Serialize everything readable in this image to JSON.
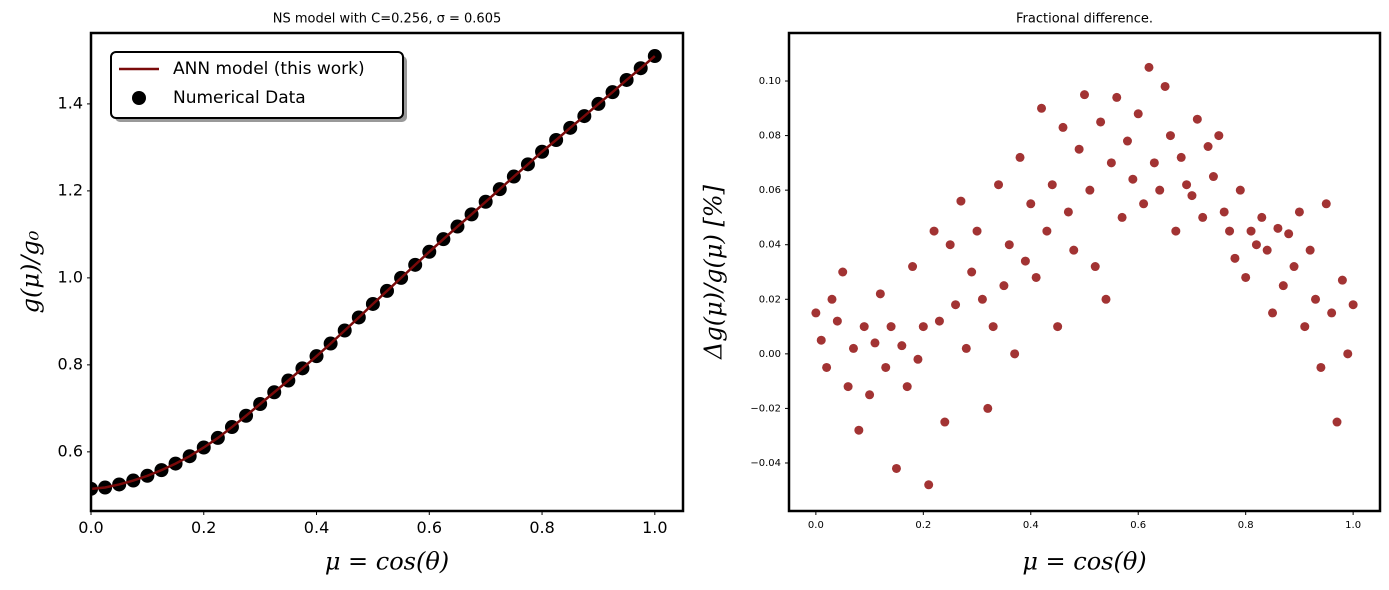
{
  "chart_data": [
    {
      "type": "line",
      "title": "NS model with C=0.256, σ = 0.605",
      "xlabel": "μ = cos(θ)",
      "ylabel": "g(μ)/g₀",
      "x": [
        0,
        0.025,
        0.05,
        0.075,
        0.1,
        0.125,
        0.15,
        0.175,
        0.2,
        0.225,
        0.25,
        0.275,
        0.3,
        0.325,
        0.35,
        0.375,
        0.4,
        0.425,
        0.45,
        0.475,
        0.5,
        0.525,
        0.55,
        0.575,
        0.6,
        0.625,
        0.65,
        0.675,
        0.7,
        0.725,
        0.75,
        0.775,
        0.8,
        0.825,
        0.85,
        0.875,
        0.9,
        0.925,
        0.95,
        0.975,
        1.0
      ],
      "series": [
        {
          "name": "ANN model (this work)",
          "type": "line",
          "color": "#7a0a0a",
          "values": [
            0.515,
            0.518,
            0.525,
            0.534,
            0.545,
            0.558,
            0.573,
            0.59,
            0.61,
            0.632,
            0.657,
            0.683,
            0.71,
            0.737,
            0.764,
            0.792,
            0.82,
            0.849,
            0.879,
            0.909,
            0.94,
            0.97,
            1.0,
            1.03,
            1.06,
            1.089,
            1.118,
            1.146,
            1.175,
            1.204,
            1.233,
            1.261,
            1.29,
            1.317,
            1.345,
            1.372,
            1.4,
            1.427,
            1.455,
            1.482,
            1.51
          ]
        },
        {
          "name": "Numerical Data",
          "type": "scatter",
          "color": "#000000",
          "values": [
            0.515,
            0.518,
            0.525,
            0.534,
            0.545,
            0.558,
            0.573,
            0.59,
            0.61,
            0.632,
            0.657,
            0.683,
            0.71,
            0.737,
            0.764,
            0.792,
            0.82,
            0.849,
            0.879,
            0.909,
            0.94,
            0.97,
            1.0,
            1.03,
            1.06,
            1.089,
            1.118,
            1.146,
            1.175,
            1.204,
            1.233,
            1.261,
            1.29,
            1.317,
            1.345,
            1.372,
            1.4,
            1.427,
            1.455,
            1.482,
            1.51
          ]
        }
      ],
      "xlim": [
        0,
        1.05
      ],
      "ylim": [
        0.464,
        1.563
      ],
      "xticks": [
        {
          "value": 0,
          "label": "0.0"
        },
        0.2,
        0.4,
        0.6,
        0.8,
        {
          "value": 1,
          "label": "1.0"
        }
      ],
      "yticks": [
        0.6,
        0.8,
        {
          "value": 1,
          "label": "1.0"
        },
        1.2,
        1.4
      ],
      "legend": "upper left"
    },
    {
      "type": "scatter",
      "title": "Fractional difference.",
      "xlabel": "μ = cos(θ)",
      "ylabel": "Δg(μ)/g(μ)  [%]",
      "x": [
        0,
        0.01,
        0.02,
        0.03,
        0.04,
        0.05,
        0.06,
        0.07,
        0.08,
        0.09,
        0.1,
        0.11,
        0.12,
        0.13,
        0.14,
        0.15,
        0.16,
        0.17,
        0.18,
        0.19,
        0.2,
        0.21,
        0.22,
        0.23,
        0.24,
        0.25,
        0.26,
        0.27,
        0.28,
        0.29,
        0.3,
        0.31,
        0.32,
        0.33,
        0.34,
        0.35,
        0.36,
        0.37,
        0.38,
        0.39,
        0.4,
        0.41,
        0.42,
        0.43,
        0.44,
        0.45,
        0.46,
        0.47,
        0.48,
        0.49,
        0.5,
        0.51,
        0.52,
        0.53,
        0.54,
        0.55,
        0.56,
        0.57,
        0.58,
        0.59,
        0.6,
        0.61,
        0.62,
        0.63,
        0.64,
        0.65,
        0.66,
        0.67,
        0.68,
        0.69,
        0.7,
        0.71,
        0.72,
        0.73,
        0.74,
        0.75,
        0.76,
        0.77,
        0.78,
        0.79,
        0.8,
        0.81,
        0.82,
        0.83,
        0.84,
        0.85,
        0.86,
        0.87,
        0.88,
        0.89,
        0.9,
        0.91,
        0.92,
        0.93,
        0.94,
        0.95,
        0.96,
        0.97,
        0.98,
        0.99,
        1.0
      ],
      "series": [
        {
          "name": "Fractional difference",
          "color": "#8b0000",
          "values": [
            0.015,
            0.005,
            -0.005,
            0.02,
            0.012,
            0.03,
            -0.012,
            0.002,
            -0.028,
            0.01,
            -0.015,
            0.004,
            0.022,
            -0.005,
            0.01,
            -0.042,
            0.003,
            -0.012,
            0.032,
            -0.002,
            0.01,
            -0.048,
            0.045,
            0.012,
            -0.025,
            0.04,
            0.018,
            0.056,
            0.002,
            0.03,
            0.045,
            0.02,
            -0.02,
            0.01,
            0.062,
            0.025,
            0.04,
            0.0,
            0.072,
            0.034,
            0.055,
            0.028,
            0.09,
            0.045,
            0.062,
            0.01,
            0.083,
            0.052,
            0.038,
            0.075,
            0.095,
            0.06,
            0.032,
            0.085,
            0.02,
            0.07,
            0.094,
            0.05,
            0.078,
            0.064,
            0.088,
            0.055,
            0.105,
            0.07,
            0.06,
            0.098,
            0.08,
            0.045,
            0.072,
            0.062,
            0.058,
            0.086,
            0.05,
            0.076,
            0.065,
            0.08,
            0.052,
            0.045,
            0.035,
            0.06,
            0.028,
            0.045,
            0.04,
            0.05,
            0.038,
            0.015,
            0.046,
            0.025,
            0.044,
            0.032,
            0.052,
            0.01,
            0.038,
            0.02,
            -0.005,
            0.055,
            0.015,
            -0.025,
            0.027,
            0.0,
            0.018
          ]
        }
      ],
      "xlim": [
        -0.05,
        1.05
      ],
      "ylim": [
        -0.0576,
        0.1176
      ],
      "xticks": [
        {
          "value": 0,
          "label": "0.0"
        },
        0.2,
        0.4,
        0.6,
        0.8,
        {
          "value": 1,
          "label": "1.0"
        }
      ],
      "yticks": [
        {
          "value": -0.04,
          "label": "−0.04"
        },
        {
          "value": -0.02,
          "label": "−0.02"
        },
        {
          "value": 0,
          "label": "0.00"
        },
        {
          "value": 0.02,
          "label": "0.02"
        },
        {
          "value": 0.04,
          "label": "0.04"
        },
        {
          "value": 0.06,
          "label": "0.06"
        },
        {
          "value": 0.08,
          "label": "0.08"
        },
        {
          "value": 0.1,
          "label": "0.10"
        }
      ]
    }
  ]
}
